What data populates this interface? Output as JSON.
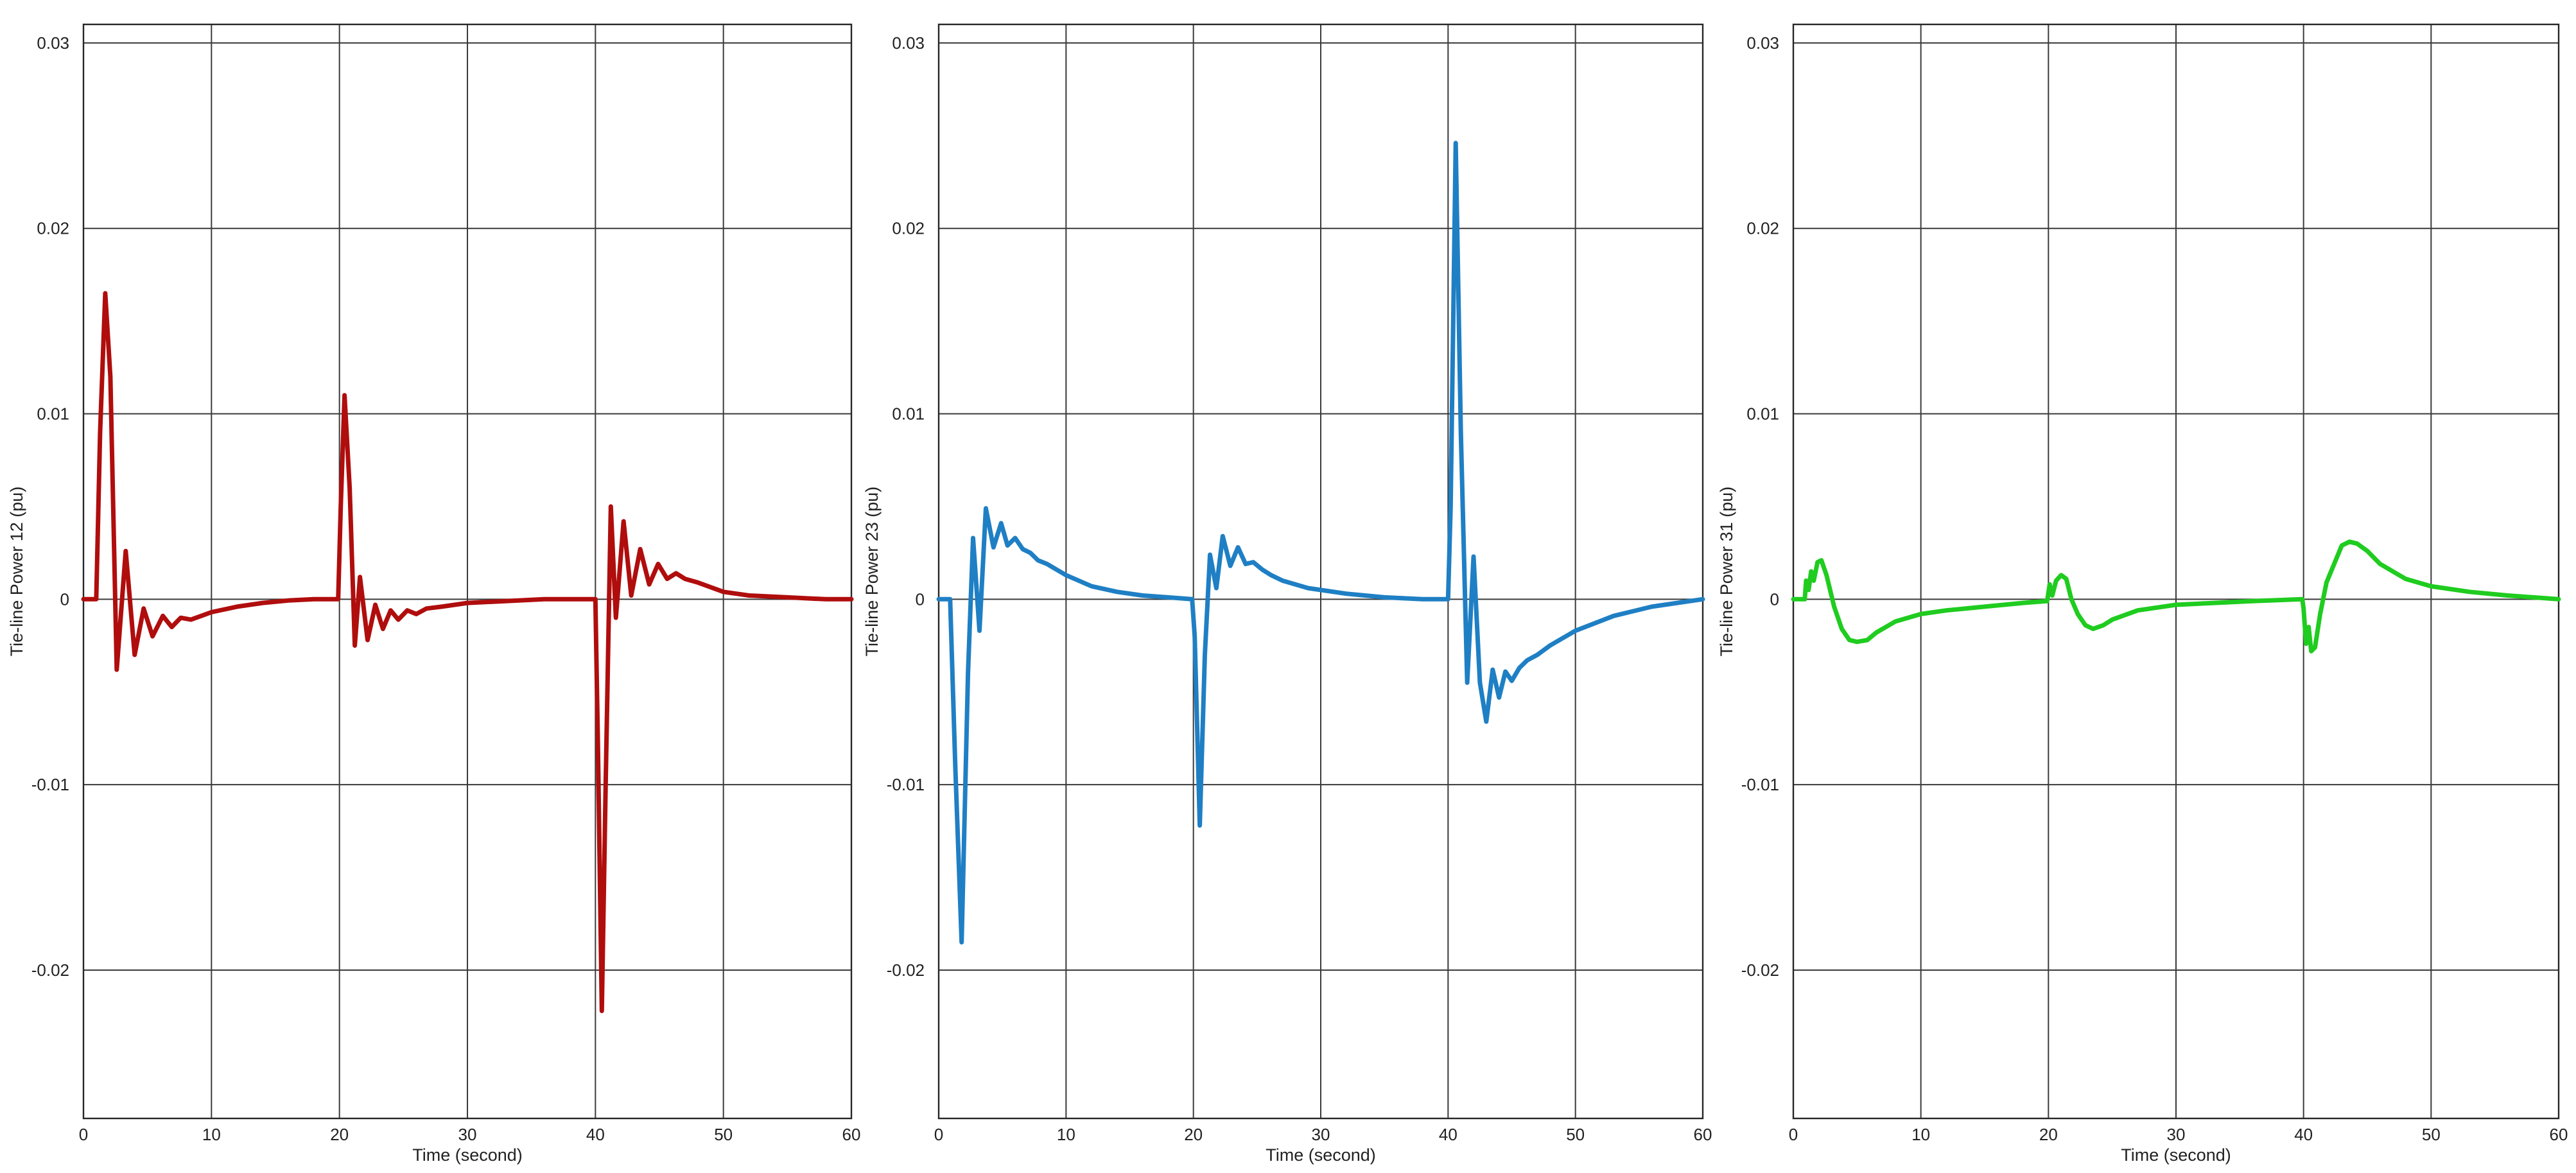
{
  "chart_data": [
    {
      "type": "line",
      "xlabel": "Time (second)",
      "ylabel": "Tie-line Power 12 (pu)",
      "xlim": [
        0,
        60
      ],
      "ylim": [
        -0.028,
        0.031
      ],
      "xticks": [
        0,
        10,
        20,
        30,
        40,
        50,
        60
      ],
      "xtick_labels": [
        "0",
        "10",
        "20",
        "30",
        "40",
        "50",
        "60"
      ],
      "yticks": [
        -0.02,
        -0.01,
        0,
        0.01,
        0.02,
        0.03
      ],
      "ytick_labels": [
        "-0.02",
        "-0.01",
        "0",
        "0.01",
        "0.02",
        "0.03"
      ],
      "grid": true,
      "series": [
        {
          "color": "#b00d0d",
          "x": [
            0,
            1.0,
            1.3,
            1.7,
            2.1,
            2.6,
            3.3,
            4.0,
            4.7,
            5.4,
            6.2,
            6.9,
            7.6,
            8.4,
            9.2,
            10,
            12,
            14,
            16,
            18,
            19.9,
            20.1,
            20.4,
            20.8,
            21.2,
            21.6,
            22.2,
            22.8,
            23.4,
            24.0,
            24.6,
            25.3,
            26.0,
            26.8,
            28,
            30,
            33,
            36,
            39,
            40.0,
            40.2,
            40.5,
            40.8,
            41.2,
            41.6,
            42.2,
            42.8,
            43.5,
            44.2,
            44.9,
            45.6,
            46.3,
            47.0,
            48,
            50,
            52,
            55,
            58,
            60
          ],
          "y": [
            0,
            0,
            0.009,
            0.0165,
            0.012,
            -0.0038,
            0.0026,
            -0.003,
            -0.0005,
            -0.002,
            -0.0009,
            -0.0015,
            -0.001,
            -0.0011,
            -0.0009,
            -0.0007,
            -0.0004,
            -0.0002,
            -7e-05,
            0,
            0,
            0.005,
            0.011,
            0.006,
            -0.0025,
            0.0012,
            -0.0022,
            -0.0003,
            -0.0016,
            -0.0006,
            -0.0011,
            -0.0006,
            -0.0008,
            -0.0005,
            -0.0004,
            -0.0002,
            -0.0001,
            0,
            0,
            0,
            -0.008,
            -0.0222,
            -0.01,
            0.005,
            -0.001,
            0.0042,
            0.0002,
            0.0027,
            0.0008,
            0.0019,
            0.0011,
            0.0014,
            0.0011,
            0.0009,
            0.0004,
            0.0002,
            0.0001,
            0,
            0
          ]
        }
      ]
    },
    {
      "type": "line",
      "xlabel": "Time (second)",
      "ylabel": "Tie-line Power 23 (pu)",
      "xlim": [
        0,
        60
      ],
      "ylim": [
        -0.028,
        0.031
      ],
      "xticks": [
        0,
        10,
        20,
        30,
        40,
        50,
        60
      ],
      "xtick_labels": [
        "0",
        "10",
        "20",
        "30",
        "40",
        "50",
        "60"
      ],
      "yticks": [
        -0.02,
        -0.01,
        0,
        0.01,
        0.02,
        0.03
      ],
      "ytick_labels": [
        "-0.02",
        "-0.01",
        "0",
        "0.01",
        "0.02",
        "0.03"
      ],
      "grid": true,
      "series": [
        {
          "color": "#1f7fc4",
          "x": [
            0,
            0.9,
            1.3,
            1.8,
            2.3,
            2.7,
            3.2,
            3.7,
            4.3,
            4.9,
            5.4,
            6.0,
            6.6,
            7.2,
            7.8,
            8.5,
            10,
            12,
            14,
            16,
            18,
            19.9,
            20.1,
            20.5,
            20.9,
            21.3,
            21.8,
            22.3,
            22.9,
            23.5,
            24.1,
            24.7,
            25.4,
            26.1,
            27,
            29,
            32,
            35,
            38,
            40.0,
            40.2,
            40.6,
            41.0,
            41.5,
            42.0,
            42.5,
            43.0,
            43.5,
            44.0,
            44.5,
            45.0,
            45.6,
            46.2,
            47,
            48,
            50,
            53,
            56,
            60
          ],
          "y": [
            0,
            0,
            -0.009,
            -0.0185,
            -0.004,
            0.0033,
            -0.0017,
            0.0049,
            0.0028,
            0.0041,
            0.0029,
            0.0033,
            0.0027,
            0.0025,
            0.0021,
            0.0019,
            0.0013,
            0.0007,
            0.0004,
            0.0002,
            0.0001,
            0,
            -0.002,
            -0.0122,
            -0.003,
            0.0024,
            0.0006,
            0.0034,
            0.0018,
            0.0028,
            0.0019,
            0.002,
            0.0016,
            0.0013,
            0.001,
            0.0006,
            0.0003,
            0.0001,
            0,
            0,
            0.005,
            0.0246,
            0.009,
            -0.0045,
            0.0023,
            -0.0045,
            -0.0066,
            -0.0038,
            -0.0053,
            -0.0039,
            -0.0044,
            -0.0037,
            -0.0033,
            -0.003,
            -0.0025,
            -0.0017,
            -0.0009,
            -0.0004,
            0
          ]
        }
      ]
    },
    {
      "type": "line",
      "xlabel": "Time (second)",
      "ylabel": "Tie-line Power 31 (pu)",
      "xlim": [
        0,
        60
      ],
      "ylim": [
        -0.028,
        0.031
      ],
      "xticks": [
        0,
        10,
        20,
        30,
        40,
        50,
        60
      ],
      "xtick_labels": [
        "0",
        "10",
        "20",
        "30",
        "40",
        "50",
        "60"
      ],
      "yticks": [
        -0.02,
        -0.01,
        0,
        0.01,
        0.02,
        0.03
      ],
      "ytick_labels": [
        "-0.02",
        "-0.01",
        "0",
        "0.01",
        "0.02",
        "0.03"
      ],
      "grid": true,
      "series": [
        {
          "color": "#1fcc1f",
          "x": [
            0,
            0.9,
            1.0,
            1.2,
            1.4,
            1.6,
            1.9,
            2.2,
            2.6,
            3.2,
            3.8,
            4.4,
            5.0,
            5.8,
            6.5,
            8,
            10,
            12,
            15,
            18,
            19.9,
            20.1,
            20.3,
            20.6,
            21.0,
            21.4,
            21.8,
            22.3,
            22.9,
            23.5,
            24.3,
            25,
            27,
            30,
            33,
            36,
            39.9,
            40.0,
            40.2,
            40.4,
            40.6,
            40.9,
            41.3,
            41.8,
            42.4,
            43.0,
            43.6,
            44.2,
            45,
            46,
            48,
            50,
            53,
            56,
            60
          ],
          "y": [
            0,
            0,
            0.001,
            0.0005,
            0.0015,
            0.001,
            0.002,
            0.0021,
            0.0013,
            -0.0004,
            -0.0016,
            -0.0022,
            -0.0023,
            -0.0022,
            -0.0018,
            -0.0012,
            -0.0008,
            -0.0006,
            -0.0004,
            -0.0002,
            -0.0001,
            0.0008,
            0.0002,
            0.001,
            0.0013,
            0.0011,
            0.0,
            -0.0008,
            -0.0014,
            -0.0016,
            -0.0014,
            -0.0011,
            -0.0006,
            -0.0003,
            -0.0002,
            -0.0001,
            0,
            -0.0005,
            -0.0024,
            -0.0015,
            -0.0028,
            -0.0026,
            -0.0008,
            0.0009,
            0.0019,
            0.0029,
            0.0031,
            0.003,
            0.0026,
            0.0019,
            0.0011,
            0.0007,
            0.0004,
            0.0002,
            0
          ]
        }
      ]
    }
  ]
}
